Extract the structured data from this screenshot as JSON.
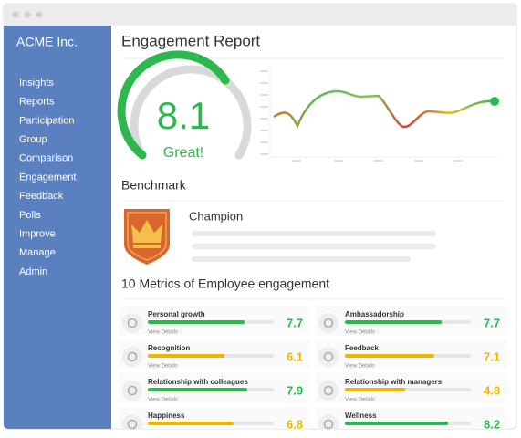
{
  "sidebar": {
    "title": "ACME Inc.",
    "items": [
      "Insights",
      "Reports",
      "Participation",
      "Group",
      "Comparison",
      "Engagement",
      "Feedback",
      "Polls",
      "Improve",
      "Manage",
      "Admin"
    ]
  },
  "report": {
    "title": "Engagement Report",
    "score": "8.1",
    "rating": "Great!"
  },
  "benchmark": {
    "title": "Benchmark",
    "badge": "Champion"
  },
  "metrics": {
    "title": "10 Metrics of Employee engagement",
    "link": "View Details",
    "items": [
      {
        "name": "Personal growth",
        "score": 7.7,
        "color": "#2db84d"
      },
      {
        "name": "Ambassadorship",
        "score": 7.7,
        "color": "#2db84d"
      },
      {
        "name": "Recognition",
        "score": 6.1,
        "color": "#f0b400"
      },
      {
        "name": "Feedback",
        "score": 7.1,
        "color": "#f0b400"
      },
      {
        "name": "Relationship with colleagues",
        "score": 7.9,
        "color": "#2db84d"
      },
      {
        "name": "Relationship with managers",
        "score": 4.8,
        "color": "#f0b400"
      },
      {
        "name": "Happiness",
        "score": 6.8,
        "color": "#f0b400"
      },
      {
        "name": "Wellness",
        "score": 8.2,
        "color": "#2db84d"
      }
    ]
  }
}
